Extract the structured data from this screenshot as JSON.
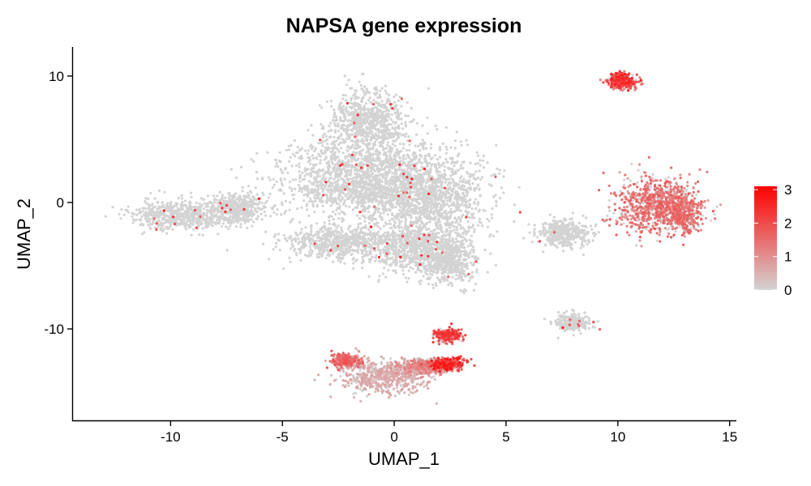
{
  "chart_data": {
    "type": "scatter",
    "title": "NAPSA gene expression",
    "xlabel": "UMAP_1",
    "ylabel": "UMAP_2",
    "xlim": [
      -14.4,
      15.3
    ],
    "ylim": [
      -17.3,
      12.3
    ],
    "x_ticks": [
      -10,
      -5,
      0,
      5,
      10,
      15
    ],
    "x_tick_labels": [
      "-10",
      "-5",
      "0",
      "5",
      "10",
      "15"
    ],
    "y_ticks": [
      -10,
      0,
      10
    ],
    "y_tick_labels": [
      "-10",
      "0",
      "10"
    ],
    "grid": false,
    "legend": {
      "position": "right",
      "type": "color-gradient",
      "title": "",
      "min": 0,
      "max": 3.1,
      "ticks": [
        0,
        1,
        2,
        3
      ],
      "tick_labels": [
        "0",
        "1",
        "2",
        "3"
      ],
      "low_color": "#D3D3D3",
      "high_color": "#FF0000"
    },
    "clusters": [
      {
        "center": [
          -9.5,
          -1.0
        ],
        "spread": [
          1.9,
          1.0
        ],
        "expression": 0.02
      },
      {
        "center": [
          -7.0,
          -0.5
        ],
        "spread": [
          1.0,
          1.0
        ],
        "expression": 0.02
      },
      {
        "center": [
          -2.5,
          -3.2
        ],
        "spread": [
          2.0,
          1.1
        ],
        "expression": 0.02
      },
      {
        "center": [
          -1.5,
          1.8
        ],
        "spread": [
          2.8,
          2.8
        ],
        "expression": 0.02
      },
      {
        "center": [
          1.5,
          0.5
        ],
        "spread": [
          2.2,
          2.8
        ],
        "expression": 0.02
      },
      {
        "center": [
          -1.2,
          6.5
        ],
        "spread": [
          1.4,
          2.0
        ],
        "expression": 0.02
      },
      {
        "center": [
          1.0,
          -3.8
        ],
        "spread": [
          1.7,
          1.6
        ],
        "expression": 0.05
      },
      {
        "center": [
          2.5,
          -4.6
        ],
        "spread": [
          0.9,
          1.6
        ],
        "expression": 0.05
      },
      {
        "center": [
          10.2,
          9.6
        ],
        "spread": [
          0.5,
          0.5
        ],
        "expression": 1.9
      },
      {
        "center": [
          11.6,
          -0.2
        ],
        "spread": [
          1.5,
          1.9
        ],
        "expression": 1.3
      },
      {
        "center": [
          12.8,
          -0.8
        ],
        "spread": [
          0.7,
          1.3
        ],
        "expression": 1.3
      },
      {
        "center": [
          7.5,
          -2.4
        ],
        "spread": [
          0.9,
          0.9
        ],
        "expression": 0.05
      },
      {
        "center": [
          8.0,
          -9.5
        ],
        "spread": [
          0.6,
          0.5
        ],
        "expression": 0.1
      },
      {
        "center": [
          -0.5,
          -13.8
        ],
        "spread": [
          1.6,
          1.1
        ],
        "expression": 0.55
      },
      {
        "center": [
          -2.2,
          -12.5
        ],
        "spread": [
          0.5,
          0.4
        ],
        "expression": 1.4
      },
      {
        "center": [
          2.3,
          -12.8
        ],
        "spread": [
          0.6,
          0.4
        ],
        "expression": 2.1
      },
      {
        "center": [
          2.4,
          -10.5
        ],
        "spread": [
          0.5,
          0.4
        ],
        "expression": 1.8
      },
      {
        "center": [
          1.4,
          -13.0
        ],
        "spread": [
          1.0,
          0.5
        ],
        "expression": 1.0
      }
    ]
  }
}
